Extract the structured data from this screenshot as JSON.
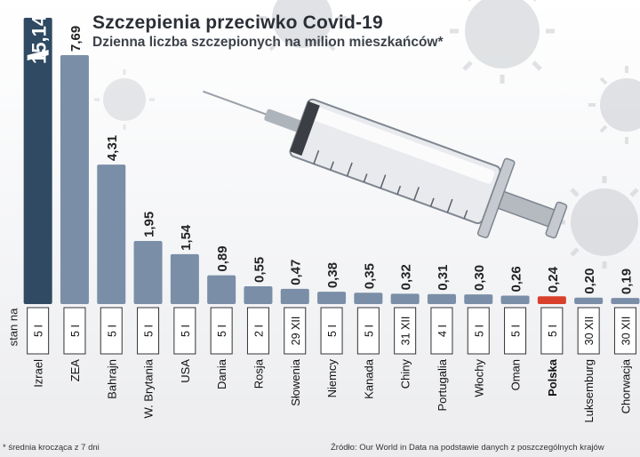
{
  "header": {
    "title": "Szczepienia przeciwko Covid-19",
    "subtitle": "Dzienna liczba szczepionych na milion mieszkańców*"
  },
  "date_row_label": "stan na",
  "footnote": "* średnia krocząca z 7 dni",
  "source": "Źródło: Our World in Data na podstawie danych z poszczególnych krajów",
  "colors": {
    "bar_izrael": "#2f4a62",
    "bar_default": "#7a8ea7",
    "bar_highlight": "#d9402b",
    "text": "#222222"
  },
  "chart_data": {
    "type": "bar",
    "title": "Szczepienia przeciwko Covid-19",
    "subtitle": "Dzienna liczba szczepionych na milion mieszkańców*",
    "categories": [
      "Izrael",
      "ZEA",
      "Bahrajn",
      "W. Brytania",
      "USA",
      "Dania",
      "Rosja",
      "Słowenia",
      "Niemcy",
      "Kanada",
      "Chiny",
      "Portugalia",
      "Włochy",
      "Oman",
      "Polska",
      "Luksemburg",
      "Chorwacja"
    ],
    "values": [
      15.14,
      7.69,
      4.31,
      1.95,
      1.54,
      0.89,
      0.55,
      0.47,
      0.38,
      0.35,
      0.32,
      0.31,
      0.3,
      0.26,
      0.24,
      0.2,
      0.19
    ],
    "value_labels": [
      "15,14",
      "7,69",
      "4,31",
      "1,95",
      "1,54",
      "0,89",
      "0,55",
      "0,47",
      "0,38",
      "0,35",
      "0,32",
      "0,31",
      "0,30",
      "0,26",
      "0,24",
      "0,20",
      "0,19"
    ],
    "dates": [
      "5 I",
      "5 I",
      "5 I",
      "5 I",
      "5 I",
      "5 I",
      "2 I",
      "29 XII",
      "5 I",
      "5 I",
      "31 XII",
      "4 I",
      "5 I",
      "5 I",
      "5 I",
      "30 XII",
      "30 XII"
    ],
    "highlight": "Polska",
    "broken_axis_category": "Izrael",
    "ylim": [
      0,
      7.69
    ]
  }
}
